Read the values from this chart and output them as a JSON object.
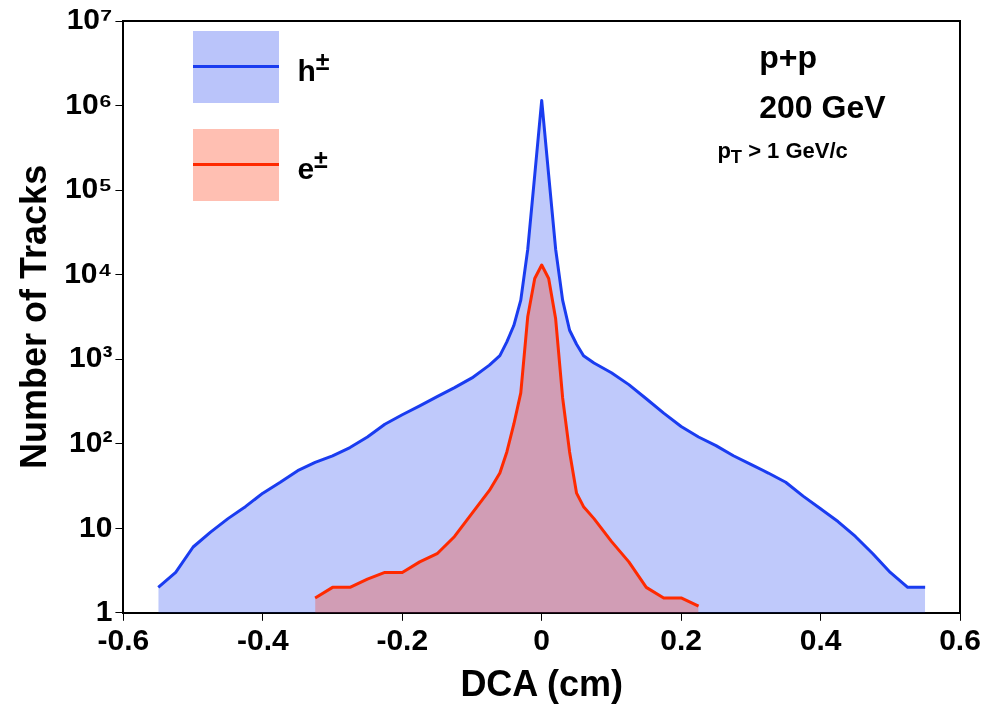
{
  "chart_data": {
    "type": "area",
    "xlabel": "DCA (cm)",
    "ylabel": "Number of Tracks",
    "log": "y",
    "legend": "top left",
    "grid": false,
    "marker": "none",
    "annotations": [
      "p+p",
      "200 GeV",
      "p$_{T}$ > 1 GeV/c"
    ],
    "xlim": [
      -0.6,
      0.6
    ],
    "xticks": [
      -0.6,
      -0.4,
      -0.2,
      0,
      0.2,
      0.4,
      0.6
    ],
    "ylim": [
      1,
      10000000
    ],
    "yticks": [
      1,
      10,
      {
        "value": 100,
        "label": "10²"
      },
      {
        "value": 1000,
        "label": "10³"
      },
      {
        "value": 10000,
        "label": "10⁴"
      },
      {
        "value": 100000,
        "label": "10⁵"
      },
      {
        "value": 1000000,
        "label": "10⁶"
      },
      {
        "value": 10000000,
        "label": "10⁷"
      }
    ],
    "x": [
      -0.55,
      -0.525,
      -0.5,
      -0.475,
      -0.45,
      -0.425,
      -0.4,
      -0.375,
      -0.35,
      -0.325,
      -0.3,
      -0.275,
      -0.25,
      -0.225,
      -0.2,
      -0.175,
      -0.15,
      -0.125,
      -0.1,
      -0.075,
      -0.06,
      -0.05,
      -0.04,
      -0.03,
      -0.02,
      -0.01,
      0,
      0.01,
      0.02,
      0.03,
      0.04,
      0.05,
      0.06,
      0.075,
      0.1,
      0.125,
      0.15,
      0.175,
      0.2,
      0.225,
      0.25,
      0.275,
      0.3,
      0.325,
      0.35,
      0.375,
      0.4,
      0.425,
      0.45,
      0.475,
      0.5,
      0.525,
      0.55
    ],
    "series": [
      {
        "name": "h$^{±}$",
        "color": "#1a3cf0",
        "values": [
          2,
          3,
          6,
          9,
          13,
          18,
          26,
          35,
          48,
          60,
          72,
          90,
          120,
          170,
          220,
          280,
          360,
          460,
          600,
          850,
          1100,
          1600,
          2500,
          5000,
          20000,
          150000,
          1150000,
          150000,
          20000,
          5000,
          2200,
          1500,
          1100,
          900,
          690,
          500,
          340,
          230,
          160,
          120,
          95,
          72,
          57,
          45,
          35,
          24,
          17,
          12,
          8,
          5,
          3,
          2,
          2
        ]
      },
      {
        "name": "e$^{±}$",
        "color": "#ff2a00",
        "values": [
          null,
          null,
          null,
          null,
          null,
          null,
          null,
          null,
          null,
          1.5,
          2,
          2,
          2.5,
          3,
          3,
          4,
          5,
          8,
          15,
          28,
          45,
          80,
          170,
          400,
          3200,
          9000,
          13000,
          9000,
          3000,
          350,
          80,
          26,
          18,
          13,
          7,
          4,
          2,
          1.5,
          1.5,
          1.2,
          null,
          null,
          null,
          null,
          null,
          null,
          null,
          null,
          null,
          null,
          null,
          null,
          null
        ]
      }
    ]
  }
}
